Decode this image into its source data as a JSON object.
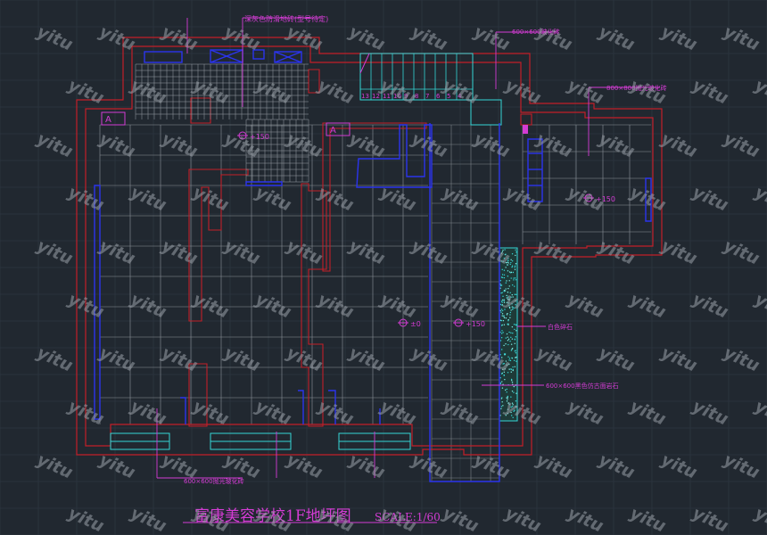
{
  "title": {
    "main": "富康美容学校1F地坪图",
    "scale": "SCALE:1/60"
  },
  "annotations": {
    "top_finish": "深灰色防滑地砖(型号待定)",
    "tile_600": "600×600玻化砖",
    "tile_800": "800×800抛光玻化砖",
    "white_gravel": "白色碎石",
    "stone_600": "600×600黑色仿古面岩石",
    "bottom_tile": "600×600抛光玻化砖"
  },
  "elevations": {
    "e_a": "+150",
    "e_b": "+150",
    "e_c": "±0",
    "e_d": "+150"
  },
  "stair_numbers": [
    "13",
    "12",
    "11",
    "10",
    "9",
    "8",
    "7",
    "6",
    "5",
    "4"
  ],
  "door_glyph": "A",
  "watermark_text": "yitu",
  "colors": {
    "background": "#212830",
    "wall": "#c21f28",
    "grid_tile": "#b8bcc2",
    "cyan": "#35d6d6",
    "blue": "#2b34ee",
    "magenta": "#d43cd4"
  }
}
